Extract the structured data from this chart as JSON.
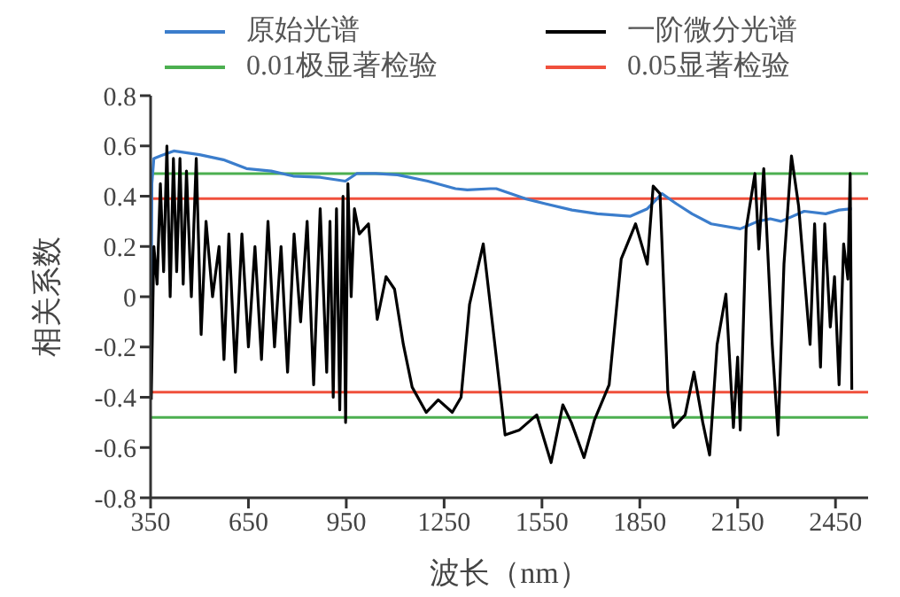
{
  "chart_data": {
    "type": "line",
    "xlabel": "波长（nm）",
    "ylabel": "相关系数",
    "xlim": [
      350,
      2550
    ],
    "xticks": [
      350,
      650,
      950,
      1250,
      1550,
      1850,
      2150,
      2450
    ],
    "ylim": [
      -0.8,
      0.8
    ],
    "yticks": [
      -0.8,
      -0.6,
      -0.4,
      -0.2,
      0,
      0.2,
      0.4,
      0.6,
      0.8
    ],
    "grid": false,
    "legend": "top",
    "marker": "none",
    "line_style": "solid",
    "series": [
      {
        "name": "原始光谱",
        "color": "#3b7dcc",
        "x": [
          352,
          354,
          360,
          380,
          421,
          500,
          573,
          644,
          720,
          787,
          870,
          947,
          982,
          1040,
          1107,
          1200,
          1285,
          1321,
          1392,
          1410,
          1499,
          1560,
          1642,
          1720,
          1820,
          1873,
          1918,
          1962,
          2010,
          2069,
          2158,
          2212,
          2250,
          2283,
          2354,
          2420,
          2461,
          2500
        ],
        "values": [
          0.0,
          0.45,
          0.55,
          0.56,
          0.58,
          0.565,
          0.545,
          0.51,
          0.5,
          0.48,
          0.475,
          0.46,
          0.49,
          0.49,
          0.485,
          0.46,
          0.43,
          0.425,
          0.43,
          0.43,
          0.39,
          0.37,
          0.345,
          0.33,
          0.32,
          0.35,
          0.41,
          0.37,
          0.33,
          0.29,
          0.27,
          0.3,
          0.31,
          0.3,
          0.34,
          0.33,
          0.345,
          0.35
        ]
      },
      {
        "name": "一阶微分光谱",
        "color": "#000000",
        "x": [
          352,
          360,
          370,
          380,
          390,
          400,
          410,
          420,
          430,
          440,
          450,
          460,
          475,
          490,
          505,
          520,
          540,
          560,
          575,
          590,
          610,
          630,
          650,
          670,
          690,
          710,
          730,
          750,
          770,
          790,
          810,
          830,
          850,
          870,
          890,
          900,
          910,
          920,
          930,
          940,
          948,
          955,
          965,
          975,
          990,
          1018,
          1045,
          1072,
          1098,
          1125,
          1152,
          1195,
          1232,
          1275,
          1302,
          1328,
          1370,
          1410,
          1437,
          1481,
          1534,
          1578,
          1614,
          1640,
          1679,
          1711,
          1756,
          1793,
          1837,
          1873,
          1891,
          1912,
          1936,
          1953,
          1989,
          2016,
          2043,
          2064,
          2087,
          2114,
          2137,
          2150,
          2158,
          2176,
          2203,
          2215,
          2230,
          2256,
          2274,
          2292,
          2315,
          2337,
          2372,
          2386,
          2404,
          2417,
          2434,
          2447,
          2461,
          2475,
          2488,
          2495,
          2500
        ],
        "values": [
          -0.41,
          0.2,
          0.05,
          0.45,
          0.1,
          0.6,
          0.0,
          0.55,
          0.1,
          0.55,
          0.05,
          0.5,
          0.0,
          0.55,
          -0.15,
          0.3,
          0.0,
          0.2,
          -0.25,
          0.25,
          -0.3,
          0.25,
          -0.2,
          0.2,
          -0.25,
          0.3,
          -0.2,
          0.2,
          -0.3,
          0.25,
          -0.1,
          0.3,
          -0.35,
          0.35,
          -0.3,
          0.3,
          -0.4,
          0.35,
          -0.45,
          0.4,
          -0.5,
          0.45,
          0.0,
          0.35,
          0.25,
          0.29,
          -0.09,
          0.08,
          0.03,
          -0.19,
          -0.36,
          -0.46,
          -0.41,
          -0.46,
          -0.4,
          -0.03,
          0.21,
          -0.24,
          -0.55,
          -0.53,
          -0.47,
          -0.66,
          -0.43,
          -0.5,
          -0.64,
          -0.49,
          -0.35,
          0.15,
          0.29,
          0.13,
          0.44,
          0.41,
          -0.38,
          -0.52,
          -0.47,
          -0.3,
          -0.5,
          -0.63,
          -0.19,
          0.01,
          -0.52,
          -0.24,
          -0.53,
          0.27,
          0.49,
          0.19,
          0.51,
          -0.19,
          -0.55,
          0.13,
          0.56,
          0.36,
          -0.19,
          0.29,
          -0.28,
          0.29,
          -0.12,
          0.08,
          -0.35,
          0.21,
          0.07,
          0.49,
          -0.37
        ]
      }
    ],
    "ref_lines": [
      {
        "axis": "y",
        "value": 0.49,
        "label": "0.01极显著检验",
        "color": "#4caf50"
      },
      {
        "axis": "y",
        "value": -0.48,
        "color": "#4caf50"
      },
      {
        "axis": "y",
        "value": 0.39,
        "label": "0.05显著检验",
        "color": "#f0503c"
      },
      {
        "axis": "y",
        "value": -0.38,
        "color": "#f0503c"
      }
    ]
  }
}
